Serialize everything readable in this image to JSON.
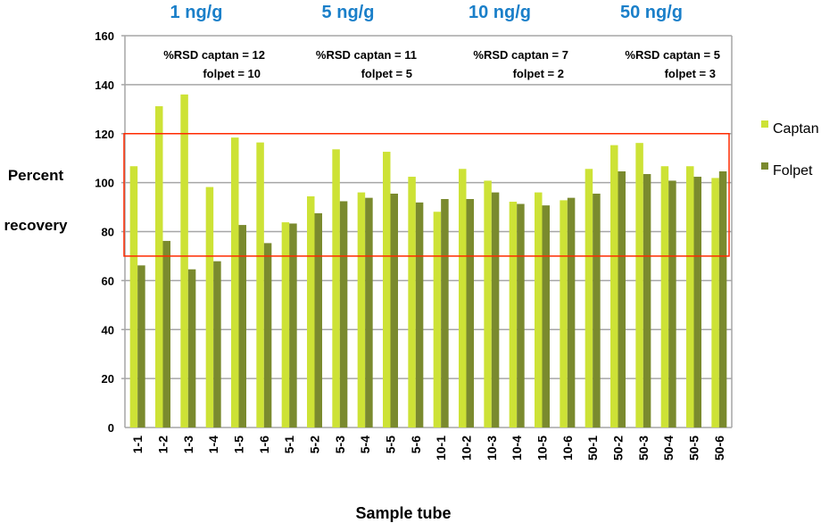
{
  "chart_data": {
    "type": "bar",
    "title": "",
    "xlabel": "Sample tube",
    "ylabel": "Percent recovery",
    "ylim": [
      0,
      160
    ],
    "yticks": [
      0,
      20,
      40,
      60,
      80,
      100,
      120,
      140,
      160
    ],
    "grid": true,
    "legend_position": "right",
    "categories": [
      "1-1",
      "1-2",
      "1-3",
      "1-4",
      "1-5",
      "1-6",
      "5-1",
      "5-2",
      "5-3",
      "5-4",
      "5-5",
      "5-6",
      "10-1",
      "10-2",
      "10-3",
      "10-4",
      "10-5",
      "10-6",
      "50-1",
      "50-2",
      "50-3",
      "50-4",
      "50-5",
      "50-6"
    ],
    "series": [
      {
        "name": "Captan",
        "color": "#cde236",
        "values": [
          106.7,
          131.2,
          136,
          98.2,
          118.4,
          116.4,
          83.8,
          94.4,
          113.6,
          96,
          112.6,
          102.4,
          88.1,
          105.6,
          100.8,
          92.2,
          96,
          92.8,
          105.6,
          115.3,
          116.2,
          106.7,
          106.7,
          101.9
        ]
      },
      {
        "name": "Folpet",
        "color": "#7a8a2e",
        "values": [
          66.2,
          76.2,
          64.6,
          67.9,
          82.7,
          75.3,
          83.3,
          87.5,
          92.4,
          93.8,
          95.5,
          91.9,
          93.3,
          93.3,
          96,
          91.3,
          90.7,
          93.8,
          95.5,
          104.6,
          103.5,
          100.8,
          102.4,
          104.6
        ]
      }
    ],
    "acceptance_range": {
      "low": 70,
      "high": 120,
      "color": "#ff2a00"
    },
    "groups": [
      {
        "label": "1 ng/g",
        "rsd_captan_label": "%RSD captan =  12",
        "rsd_folpet_label": "folpet =  10",
        "from": 0,
        "to": 5
      },
      {
        "label": "5 ng/g",
        "rsd_captan_label": "%RSD captan =  11",
        "rsd_folpet_label": "folpet =   5",
        "from": 6,
        "to": 11
      },
      {
        "label": "10 ng/g",
        "rsd_captan_label": "%RSD captan =  7",
        "rsd_folpet_label": "folpet =   2",
        "from": 12,
        "to": 17
      },
      {
        "label": "50 ng/g",
        "rsd_captan_label": "%RSD captan =  5",
        "rsd_folpet_label": "folpet =  3",
        "from": 18,
        "to": 23
      }
    ],
    "group_label_color": "#1a7fc9"
  },
  "ylabel_lines": [
    "Percent",
    "recovery"
  ]
}
